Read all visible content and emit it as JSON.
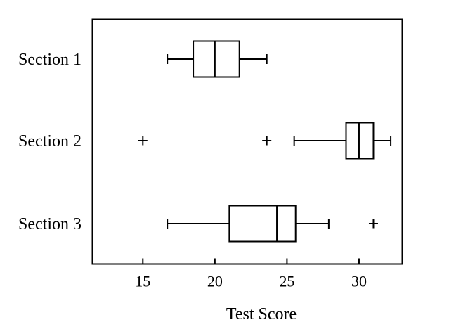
{
  "chart_data": {
    "type": "boxplot",
    "orientation": "horizontal",
    "title": "",
    "xlabel": "Test Score",
    "ylabel": "",
    "xlim": [
      11.5,
      33.0
    ],
    "xticks": [
      15,
      20,
      25,
      30
    ],
    "grid": false,
    "legend": "none",
    "series": [
      {
        "name": "Section 1",
        "whisker_low": 16.7,
        "q1": 18.5,
        "median": 20.0,
        "q3": 21.7,
        "whisker_high": 23.6,
        "outliers": []
      },
      {
        "name": "Section 2",
        "whisker_low": 25.5,
        "q1": 29.1,
        "median": 30.0,
        "q3": 31.0,
        "whisker_high": 32.2,
        "outliers": [
          15.0,
          23.6
        ]
      },
      {
        "name": "Section 3",
        "whisker_low": 16.7,
        "q1": 21.0,
        "median": 24.3,
        "q3": 25.6,
        "whisker_high": 27.9,
        "outliers": [
          31.0
        ]
      }
    ]
  }
}
